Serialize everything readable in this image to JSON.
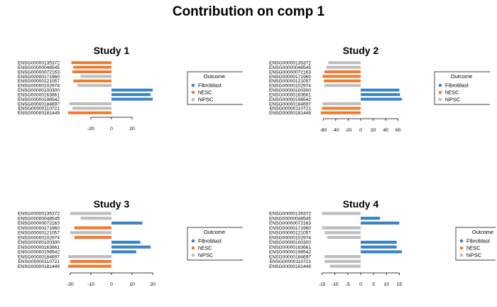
{
  "title": "Contribution on comp 1",
  "colors": {
    "Fibroblast": "#3a83c6",
    "hESC": "#ee7b30",
    "hiPSC": "#bdbdbd"
  },
  "legend": {
    "title": "Outcome",
    "entries": [
      "Fibroblast",
      "hESC",
      "hiPSC"
    ]
  },
  "chart_data": [
    {
      "type": "bar",
      "orientation": "horizontal",
      "title": "Study 1",
      "categories": [
        "ENSG00000135372",
        "ENSG00000048545",
        "ENSG00000072163",
        "ENSG00000171960",
        "ENSG00000121057",
        "ENSG00000102974",
        "ENSG00000100300",
        "ENSG00000163661",
        "ENSG00000198542",
        "ENSG00000184697",
        "ENSG00000110721",
        "ENSG00000181449"
      ],
      "values": [
        -39,
        -37,
        -38,
        -30,
        -37,
        -33,
        40,
        38,
        40,
        -41,
        -38,
        -42
      ],
      "groups": [
        "hESC",
        "hESC",
        "hESC",
        "hiPSC",
        "hESC",
        "hiPSC",
        "Fibroblast",
        "Fibroblast",
        "Fibroblast",
        "hiPSC",
        "hiPSC",
        "hESC"
      ],
      "xlim": [
        -42,
        42
      ],
      "ticks": [
        -20,
        0,
        20
      ]
    },
    {
      "type": "bar",
      "orientation": "horizontal",
      "title": "Study 2",
      "categories": [
        "ENSG00000135372",
        "ENSG00000048545",
        "ENSG00000072163",
        "ENSG00000171960",
        "ENSG00000121057",
        "ENSG00000102974",
        "ENSG00000100300",
        "ENSG00000163661",
        "ENSG00000198542",
        "ENSG00000184697",
        "ENSG00000110721",
        "ENSG00000181449"
      ],
      "values": [
        -52,
        -55,
        -58,
        -61,
        -59,
        -58,
        62,
        63,
        66,
        -61,
        -62,
        -64
      ],
      "groups": [
        "hiPSC",
        "hiPSC",
        "hESC",
        "hESC",
        "hESC",
        "hiPSC",
        "Fibroblast",
        "Fibroblast",
        "Fibroblast",
        "hiPSC",
        "hESC",
        "hESC"
      ],
      "xlim": [
        -66,
        66
      ],
      "ticks": [
        -60,
        -40,
        -20,
        0,
        20,
        40,
        60
      ]
    },
    {
      "type": "bar",
      "orientation": "horizontal",
      "title": "Study 3",
      "categories": [
        "ENSG00000135372",
        "ENSG00000048545",
        "ENSG00000072163",
        "ENSG00000171960",
        "ENSG00000121057",
        "ENSG00000102974",
        "ENSG00000100300",
        "ENSG00000163661",
        "ENSG00000198542",
        "ENSG00000184697",
        "ENSG00000110721",
        "ENSG00000181449"
      ],
      "values": [
        -20,
        -15,
        15,
        -18,
        -20,
        -18,
        14,
        19,
        12,
        -21,
        -20,
        -21
      ],
      "groups": [
        "hiPSC",
        "hiPSC",
        "Fibroblast",
        "hESC",
        "hiPSC",
        "hESC",
        "Fibroblast",
        "Fibroblast",
        "Fibroblast",
        "hiPSC",
        "hESC",
        "hESC"
      ],
      "xlim": [
        -21,
        21
      ],
      "ticks": [
        -20,
        -10,
        0,
        10,
        20
      ]
    },
    {
      "type": "bar",
      "orientation": "horizontal",
      "title": "Study 4",
      "categories": [
        "ENSG00000135372",
        "ENSG00000048545",
        "ENSG00000072163",
        "ENSG00000171960",
        "ENSG00000121057",
        "ENSG00000102974",
        "ENSG00000100300",
        "ENSG00000163661",
        "ENSG00000198542",
        "ENSG00000184697",
        "ENSG00000110721",
        "ENSG00000181449"
      ],
      "values": [
        -15,
        7.5,
        15,
        -15,
        -14,
        -13,
        14,
        14,
        16,
        -14,
        -14,
        -12
      ],
      "groups": [
        "hiPSC",
        "Fibroblast",
        "Fibroblast",
        "hiPSC",
        "hiPSC",
        "hiPSC",
        "Fibroblast",
        "Fibroblast",
        "Fibroblast",
        "hiPSC",
        "hiPSC",
        "hiPSC"
      ],
      "xlim": [
        -16,
        16
      ],
      "ticks": [
        -15,
        -10,
        -5,
        0,
        5,
        10,
        15
      ]
    }
  ]
}
